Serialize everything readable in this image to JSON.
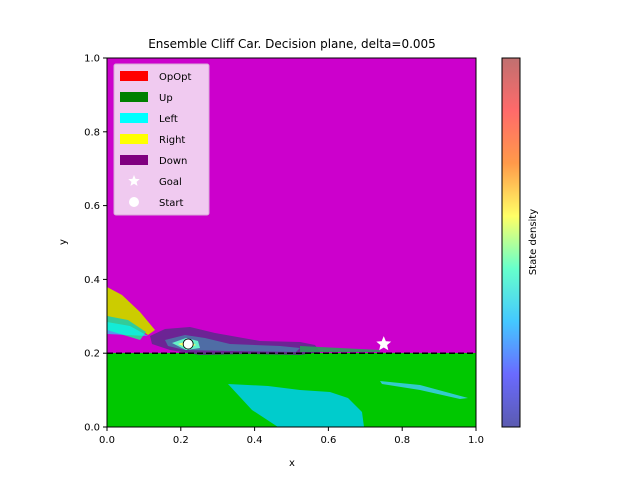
{
  "chart_data": {
    "type": "heatmap",
    "title": "Ensemble Cliff Car. Decision plane, delta=0.005",
    "xlabel": "x",
    "ylabel": "y",
    "xlim": [
      0.0,
      1.0
    ],
    "ylim": [
      0.0,
      1.0
    ],
    "xticks": [
      "0.0",
      "0.2",
      "0.4",
      "0.6",
      "0.8",
      "1.0"
    ],
    "yticks": [
      "0.0",
      "0.2",
      "0.4",
      "0.6",
      "0.8",
      "1.0"
    ],
    "grid": false,
    "legend_position": "upper-left",
    "actions": [
      {
        "name": "OpOpt",
        "color": "#ff0000"
      },
      {
        "name": "Up",
        "color": "#008000"
      },
      {
        "name": "Left",
        "color": "#00ffff"
      },
      {
        "name": "Right",
        "color": "#ffff00"
      },
      {
        "name": "Down",
        "color": "#800080"
      }
    ],
    "markers": [
      {
        "name": "Goal",
        "symbol": "star",
        "x": 0.75,
        "y": 0.225
      },
      {
        "name": "Start",
        "symbol": "circle",
        "x": 0.22,
        "y": 0.225
      }
    ],
    "cliff_line_y": 0.2,
    "regions": [
      {
        "action": "Down",
        "description": "upper plane",
        "x": [
          0.0,
          1.0
        ],
        "y": [
          0.2,
          1.0
        ]
      },
      {
        "action": "Up",
        "description": "below cliff",
        "x": [
          0.0,
          1.0
        ],
        "y": [
          0.0,
          0.2
        ]
      },
      {
        "action": "Left",
        "description": "lower patch",
        "x": [
          0.33,
          0.7
        ],
        "y": [
          0.0,
          0.11
        ]
      },
      {
        "action": "Right",
        "description": "left wedge",
        "x": [
          0.0,
          0.12
        ],
        "y": [
          0.29,
          0.38
        ]
      }
    ],
    "colorbar": {
      "label": "State density",
      "colors": [
        "#5b5bb0",
        "#6a6aff",
        "#44c8ff",
        "#66ffcc",
        "#ffff66",
        "#ff9a4a",
        "#ff6a6a",
        "#c07070"
      ]
    }
  }
}
